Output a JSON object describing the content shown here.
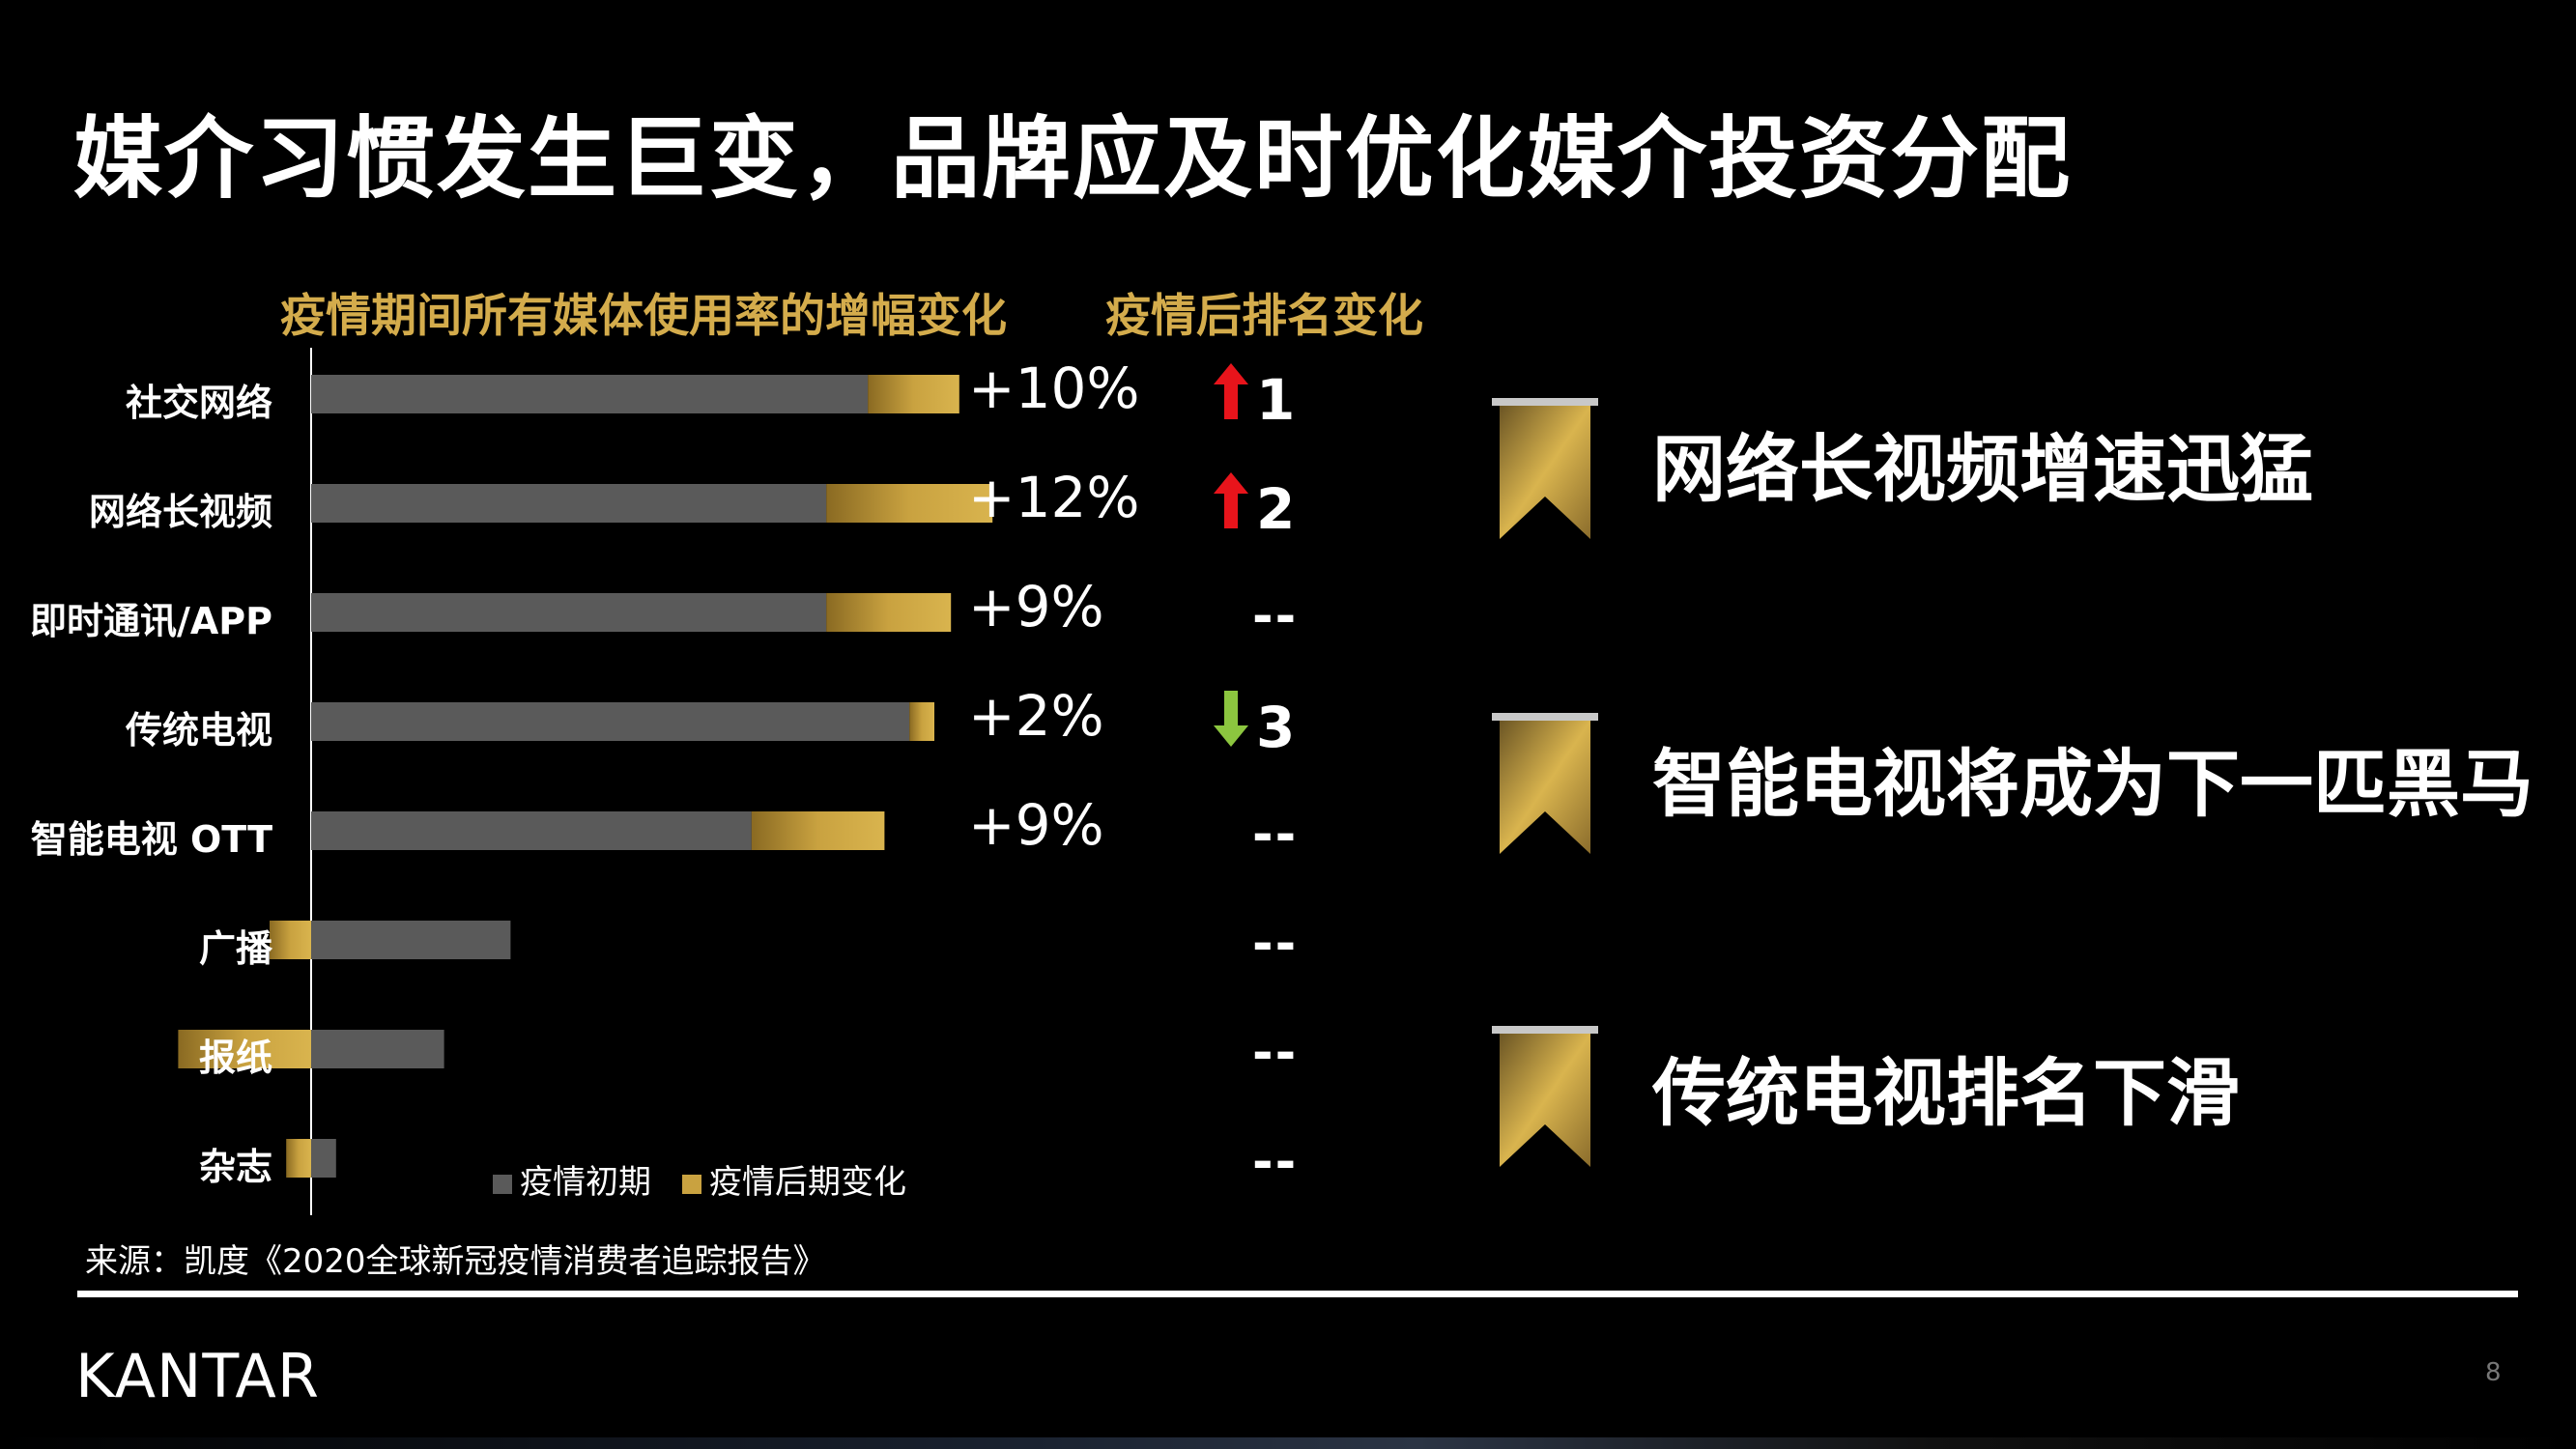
{
  "title": "媒介习惯发生巨变，品牌应及时优化媒介投资分配",
  "chart_header": "疫情期间所有媒体使用率的增幅变化",
  "rank_header": "疫情后排名变化",
  "chart_data": {
    "type": "bar",
    "orientation": "horizontal",
    "stacked": true,
    "categories": [
      "社交网络",
      "网络长视频",
      "即时通讯/APP",
      "传统电视",
      "智能电视 OTT",
      "广播",
      "报纸",
      "杂志"
    ],
    "series": [
      {
        "name": "疫情初期",
        "values": [
          67,
          62,
          62,
          72,
          53,
          24,
          16,
          3
        ]
      },
      {
        "name": "疫情后期变化",
        "values": [
          11,
          20,
          15,
          3,
          16,
          -5,
          -16,
          -3
        ]
      }
    ],
    "change_labels": [
      "+10%",
      "+12%",
      "+9%",
      "+2%",
      "+9%",
      "",
      "",
      ""
    ],
    "rank_changes": [
      {
        "direction": "up",
        "value": "1"
      },
      {
        "direction": "up",
        "value": "2"
      },
      {
        "direction": "none",
        "value": "--"
      },
      {
        "direction": "down",
        "value": "3"
      },
      {
        "direction": "none",
        "value": "--"
      },
      {
        "direction": "none",
        "value": "--"
      },
      {
        "direction": "none",
        "value": "--"
      },
      {
        "direction": "none",
        "value": "--"
      }
    ],
    "legend_position": "bottom"
  },
  "colors": {
    "base_bar": "#5a5a5a",
    "change_bar": "#c9a240",
    "header_gold": "#d4ac4c",
    "arrow_up": "#e8141b",
    "arrow_down": "#8cc63f"
  },
  "takeaways": [
    "网络长视频增速迅猛",
    "智能电视将成为下一匹黑马",
    "传统电视排名下滑"
  ],
  "source": "来源：凯度《2020全球新冠疫情消费者追踪报告》",
  "logo": "KANTAR",
  "page_number": "8"
}
